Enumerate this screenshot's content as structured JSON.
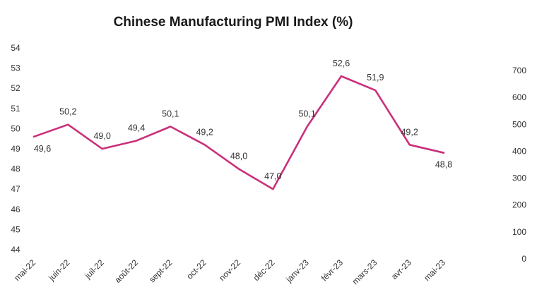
{
  "chart_data": {
    "type": "line",
    "title": "Chinese Manufacturing PMI Index (%)",
    "categories": [
      "mai-22",
      "juin-22",
      "juil-22",
      "août-22",
      "sept-22",
      "oct-22",
      "nov-22",
      "déc-22",
      "janv-23",
      "févr-23",
      "mars-23",
      "avr-23",
      "mai-23"
    ],
    "series": [
      {
        "values": [
          49.6,
          50.2,
          49.0,
          49.4,
          50.1,
          49.2,
          48.0,
          47.0,
          50.1,
          52.6,
          51.9,
          49.2,
          48.8
        ],
        "labels": [
          "49,6",
          "50,2",
          "49,0",
          "49,4",
          "50,1",
          "49,2",
          "48,0",
          "47,0",
          "50,1",
          "52,6",
          "51,9",
          "49,2",
          "48,8"
        ]
      }
    ],
    "ylim": [
      44,
      54
    ],
    "yticks": [
      "54",
      "53",
      "52",
      "51",
      "50",
      "49",
      "48",
      "47",
      "46",
      "45",
      "44"
    ],
    "y2lim": [
      0,
      700
    ],
    "y2ticks": [
      "700",
      "600",
      "500",
      "400",
      "300",
      "200",
      "100",
      "0"
    ],
    "line_color": "#c9307a",
    "grid": false,
    "legend": "none"
  }
}
